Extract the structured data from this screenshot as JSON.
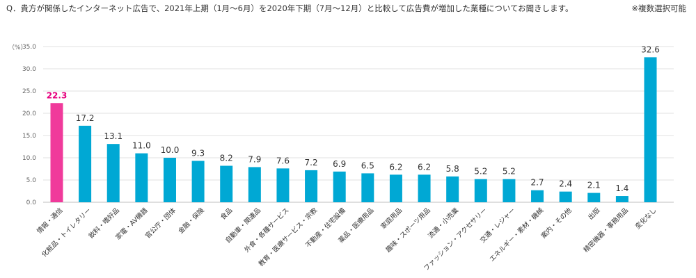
{
  "header": {
    "question": "Q．貴方が関係したインターネット広告で、2021年上期（1月～6月）を2020年下期（7月～12月）と比較して広告費が増加した業種についてお聞きします。",
    "note": "※複数選択可能"
  },
  "colors": {
    "highlight": "#f03a9b",
    "bar": "#00a8d4",
    "highlight_label": "#e6007e",
    "grid": "#e2e2e2",
    "axis": "#bfbfbf"
  },
  "chart_data": {
    "type": "bar",
    "unit_label": "（%）",
    "ylim": [
      0,
      35
    ],
    "yticks": [
      "0.0",
      "5.0",
      "10.0",
      "15.0",
      "20.0",
      "25.0",
      "30.0",
      "35.0"
    ],
    "grid": true,
    "categories": [
      "情報・通信",
      "化粧品・トイレタリー",
      "飲料・嗜好品",
      "家電・AV機器",
      "官公庁・団体",
      "金融・保険",
      "食品",
      "自動車・関連品",
      "外食・各種サービス",
      "教育・医療サービス・宗教",
      "不動産・住宅設備",
      "薬品・医療用品",
      "家庭用品",
      "趣味・スポーツ用品",
      "流通・小売業",
      "ファッション・アクセサリー",
      "交通・レジャー",
      "エネルギー・素材・機械",
      "案内・その他",
      "出版",
      "精密機器・事務用品",
      "変化なし"
    ],
    "values": [
      22.3,
      17.2,
      13.1,
      11.0,
      10.0,
      9.3,
      8.2,
      7.9,
      7.6,
      7.2,
      6.9,
      6.5,
      6.2,
      6.2,
      5.8,
      5.2,
      5.2,
      2.7,
      2.4,
      2.1,
      1.4,
      32.6
    ],
    "value_labels": [
      "22.3",
      "17.2",
      "13.1",
      "11.0",
      "10.0",
      "9.3",
      "8.2",
      "7.9",
      "7.6",
      "7.2",
      "6.9",
      "6.5",
      "6.2",
      "6.2",
      "5.8",
      "5.2",
      "5.2",
      "2.7",
      "2.4",
      "2.1",
      "1.4",
      "32.6"
    ],
    "highlight_index": 0
  }
}
